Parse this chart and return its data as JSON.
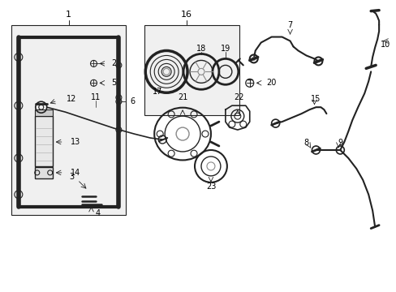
{
  "background_color": "#ffffff",
  "fig_width": 4.89,
  "fig_height": 3.6,
  "dpi": 100,
  "line_color": "#222222",
  "label_fontsize": 7.0,
  "lw": 0.9
}
